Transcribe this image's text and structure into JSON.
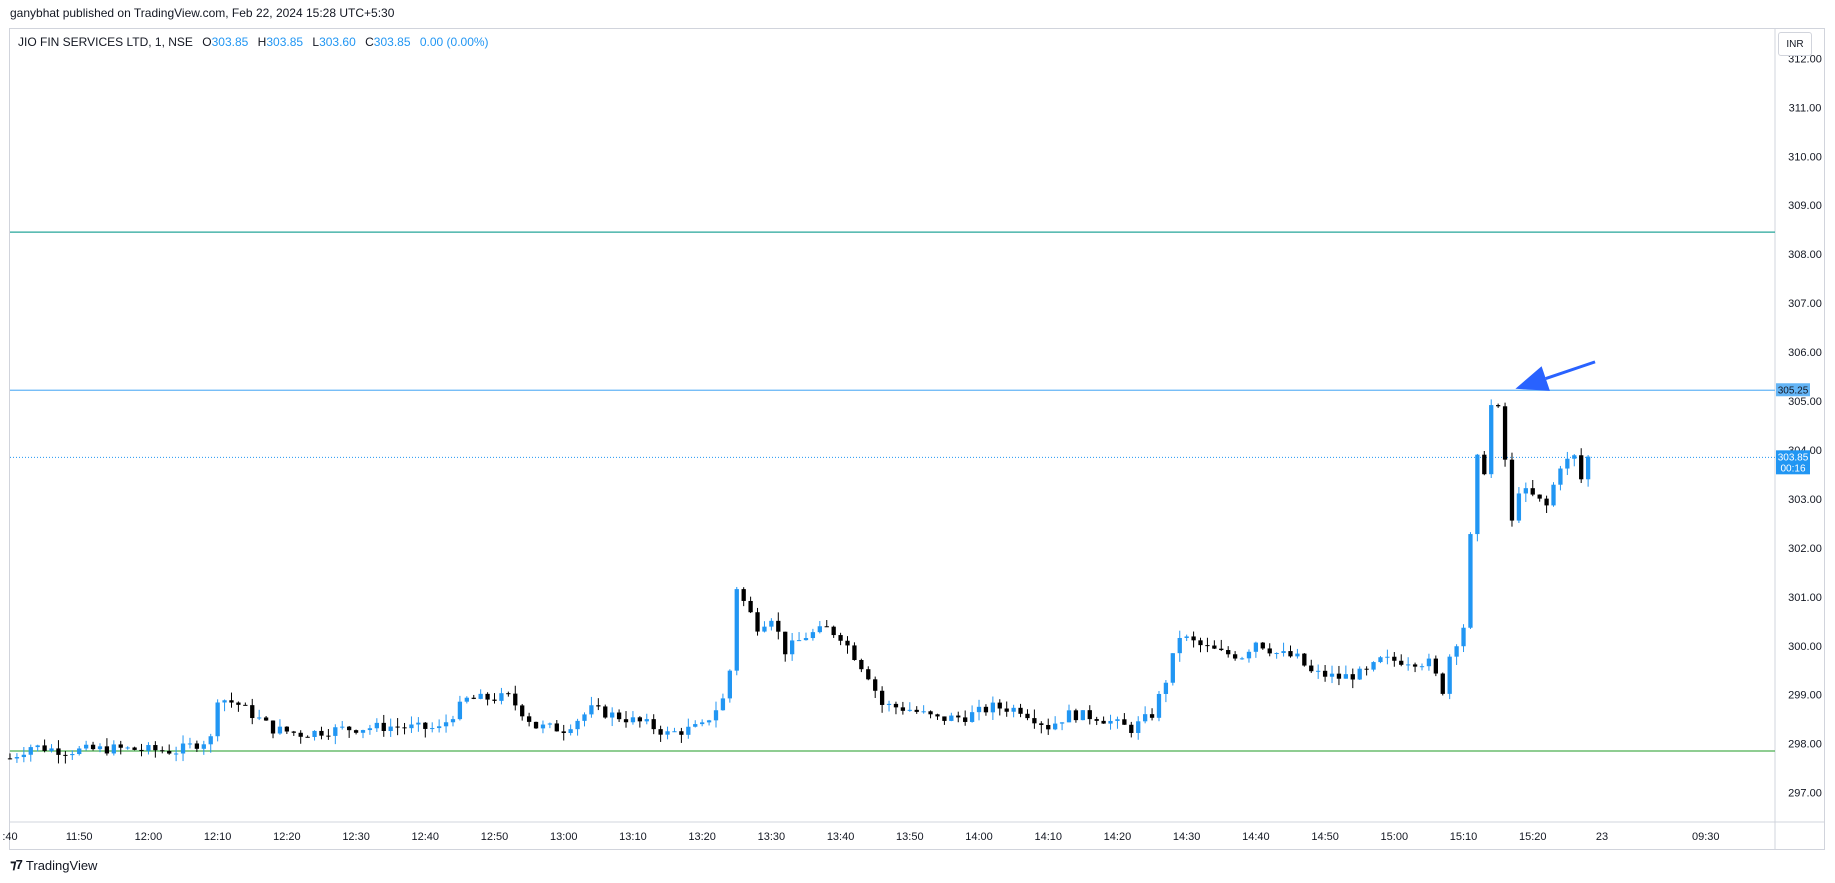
{
  "header": {
    "published": "ganybhat published on TradingView.com, Feb 22, 2024 15:28 UTC+5:30"
  },
  "legend": {
    "symbol": "JIO FIN SERVICES LTD, 1, NSE",
    "o_label": "O",
    "o_value": "303.85",
    "h_label": "H",
    "h_value": "303.85",
    "l_label": "L",
    "l_value": "303.60",
    "c_label": "C",
    "c_value": "303.85",
    "change": "0.00 (0.00%)"
  },
  "currency_button": {
    "label": "INR"
  },
  "footer": {
    "logo_text": "TradingView"
  },
  "colors": {
    "up": "#2196f3",
    "down": "#000000",
    "resistance_green": "#26a69a",
    "resistance_blue": "#64b5f6",
    "support_green": "#4caf50",
    "arrow": "#2962ff"
  },
  "chart_data": {
    "type": "candlestick",
    "ylim": [
      296.4,
      312.6
    ],
    "y_ticks": [
      "312.00",
      "311.00",
      "310.00",
      "309.00",
      "308.00",
      "307.00",
      "306.00",
      "305.00",
      "304.00",
      "303.00",
      "302.00",
      "301.00",
      "300.00",
      "299.00",
      "298.00",
      "297.00"
    ],
    "x_ticks": [
      {
        "label": ":40",
        "t": 0
      },
      {
        "label": "11:50",
        "t": 10
      },
      {
        "label": "12:00",
        "t": 20
      },
      {
        "label": "12:10",
        "t": 30
      },
      {
        "label": "12:20",
        "t": 40
      },
      {
        "label": "12:30",
        "t": 50
      },
      {
        "label": "12:40",
        "t": 60
      },
      {
        "label": "12:50",
        "t": 70
      },
      {
        "label": "13:00",
        "t": 80
      },
      {
        "label": "13:10",
        "t": 90
      },
      {
        "label": "13:20",
        "t": 100
      },
      {
        "label": "13:30",
        "t": 110
      },
      {
        "label": "13:40",
        "t": 120
      },
      {
        "label": "13:50",
        "t": 130
      },
      {
        "label": "14:00",
        "t": 140
      },
      {
        "label": "14:10",
        "t": 150
      },
      {
        "label": "14:20",
        "t": 160
      },
      {
        "label": "14:30",
        "t": 170
      },
      {
        "label": "14:40",
        "t": 180
      },
      {
        "label": "14:50",
        "t": 190
      },
      {
        "label": "15:00",
        "t": 200
      },
      {
        "label": "15:10",
        "t": 210
      },
      {
        "label": "15:20",
        "t": 220
      },
      {
        "label": "23",
        "t": 230
      },
      {
        "label": "09:30",
        "t": 245
      }
    ],
    "x_range": [
      0,
      255
    ],
    "horizontal_lines": [
      {
        "name": "upper-resistance",
        "value": 308.45,
        "color": "#26a69a",
        "style": "solid"
      },
      {
        "name": "high-level",
        "value": 305.22,
        "color": "#64b5f6",
        "style": "solid",
        "price_label": "305.25"
      },
      {
        "name": "last-price",
        "value": 303.85,
        "color": "#2196f3",
        "style": "dotted",
        "price_label": "303.85",
        "countdown": "00:16"
      },
      {
        "name": "support",
        "value": 297.85,
        "color": "#4caf50",
        "style": "solid"
      }
    ],
    "anchors": [
      [
        0,
        297.7
      ],
      [
        3,
        297.95
      ],
      [
        8,
        297.85
      ],
      [
        15,
        297.9
      ],
      [
        24,
        297.85
      ],
      [
        29,
        298.1
      ],
      [
        30,
        298.95
      ],
      [
        33,
        298.8
      ],
      [
        36,
        298.5
      ],
      [
        38,
        298.3
      ],
      [
        42,
        298.2
      ],
      [
        48,
        298.3
      ],
      [
        55,
        298.35
      ],
      [
        62,
        298.3
      ],
      [
        66,
        298.9
      ],
      [
        72,
        298.95
      ],
      [
        76,
        298.35
      ],
      [
        80,
        298.3
      ],
      [
        84,
        298.7
      ],
      [
        88,
        298.55
      ],
      [
        92,
        298.4
      ],
      [
        95,
        298.2
      ],
      [
        100,
        298.35
      ],
      [
        103,
        298.9
      ],
      [
        104,
        299.5
      ],
      [
        105,
        301.2
      ],
      [
        106,
        300.9
      ],
      [
        108,
        300.4
      ],
      [
        110,
        300.6
      ],
      [
        112,
        299.9
      ],
      [
        115,
        300.2
      ],
      [
        118,
        300.35
      ],
      [
        120,
        300.2
      ],
      [
        124,
        299.4
      ],
      [
        126,
        298.8
      ],
      [
        130,
        298.7
      ],
      [
        134,
        298.5
      ],
      [
        138,
        298.55
      ],
      [
        142,
        298.75
      ],
      [
        146,
        298.7
      ],
      [
        150,
        298.35
      ],
      [
        153,
        298.6
      ],
      [
        157,
        298.55
      ],
      [
        162,
        298.3
      ],
      [
        165,
        298.6
      ],
      [
        167,
        299.3
      ],
      [
        169,
        300.2
      ],
      [
        172,
        300.0
      ],
      [
        175,
        299.85
      ],
      [
        178,
        299.8
      ],
      [
        180,
        300.1
      ],
      [
        183,
        299.85
      ],
      [
        186,
        299.75
      ],
      [
        188,
        299.45
      ],
      [
        192,
        299.35
      ],
      [
        196,
        299.45
      ],
      [
        198,
        299.7
      ],
      [
        202,
        299.7
      ],
      [
        205,
        299.65
      ],
      [
        207,
        299.1
      ],
      [
        208,
        299.8
      ],
      [
        210,
        300.4
      ],
      [
        211,
        302.2
      ],
      [
        212,
        303.8
      ],
      [
        213,
        303.6
      ],
      [
        214,
        304.9
      ],
      [
        215,
        304.8
      ],
      [
        216,
        303.8
      ],
      [
        217,
        302.5
      ],
      [
        218,
        303.2
      ],
      [
        220,
        303.05
      ],
      [
        222,
        302.85
      ],
      [
        224,
        303.7
      ],
      [
        226,
        303.85
      ],
      [
        227,
        303.4
      ],
      [
        228,
        303.85
      ]
    ],
    "annotation": {
      "type": "arrow",
      "from": [
        229,
        305.8
      ],
      "to": [
        217.5,
        305.25
      ]
    }
  }
}
